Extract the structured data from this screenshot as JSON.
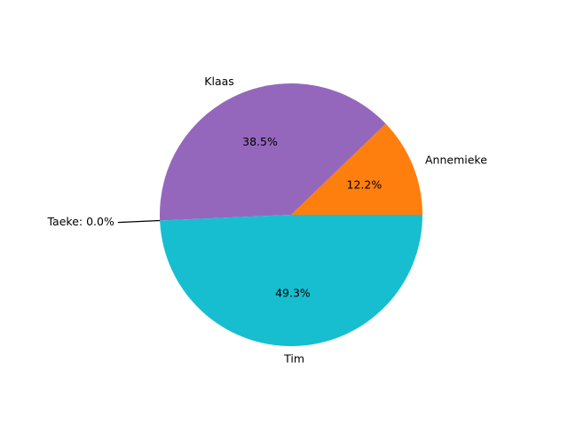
{
  "chart_data": {
    "type": "pie",
    "title": "",
    "start_angle_deg": 0,
    "direction": "counterclockwise",
    "slices": [
      {
        "name": "Annemieke",
        "value": 12.2,
        "label": "Annemieke",
        "pct_label": "12.2%",
        "color": "#ff7f0e"
      },
      {
        "name": "Klaas",
        "value": 38.5,
        "label": "Klaas",
        "pct_label": "38.5%",
        "color": "#9467bd"
      },
      {
        "name": "Taeke",
        "value": 0.0,
        "callout_label": "Taeke: 0.0%",
        "color": "#17becf"
      },
      {
        "name": "Tim",
        "value": 49.3,
        "label": "Tim",
        "pct_label": "49.3%",
        "color": "#17becf"
      }
    ]
  }
}
